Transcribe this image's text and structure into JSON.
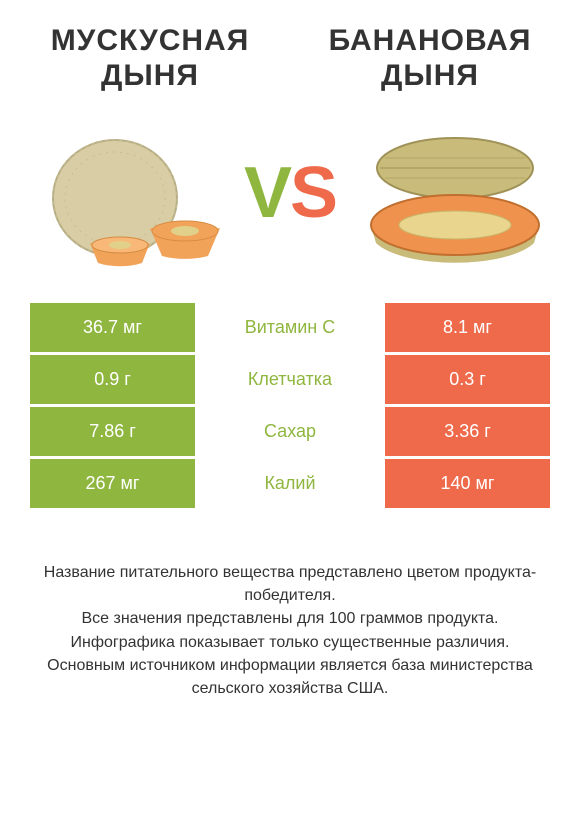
{
  "colors": {
    "left": "#8fb63f",
    "right": "#ee6a4b",
    "text_dark": "#333333",
    "bg": "#ffffff"
  },
  "left_title": "МУСКУСНАЯ ДЫНЯ",
  "right_title": "БАНАНОВАЯ ДЫНЯ",
  "vs": {
    "v": "V",
    "s": "S"
  },
  "rows": [
    {
      "left": "36.7 мг",
      "label": "Витамин C",
      "right": "8.1 мг",
      "winner": "left"
    },
    {
      "left": "0.9 г",
      "label": "Клетчатка",
      "right": "0.3 г",
      "winner": "left"
    },
    {
      "left": "7.86 г",
      "label": "Сахар",
      "right": "3.36 г",
      "winner": "left"
    },
    {
      "left": "267 мг",
      "label": "Калий",
      "right": "140 мг",
      "winner": "left"
    }
  ],
  "footer": "Название питательного вещества представлено цветом продукта-победителя.\nВсе значения представлены для 100 граммов продукта.\nИнфографика показывает только существенные различия.\nОсновным источником информации является база министерства сельского хозяйства США."
}
